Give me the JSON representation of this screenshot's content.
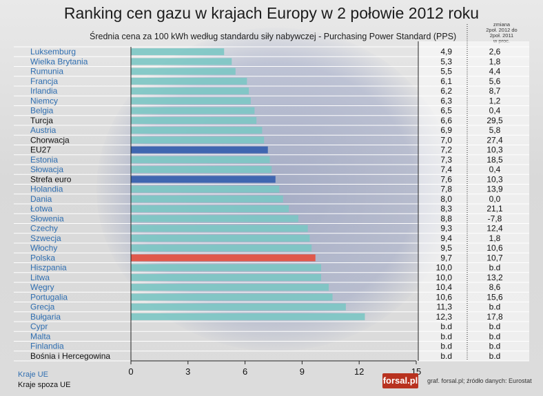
{
  "title": "Ranking cen gazu w krajach Europy w 2 połowie 2012 roku",
  "subtitle": "Średnia cena za 100 kWh według standardu siły nabywczej - Purchasing Power Standard (PPS)",
  "change_header": [
    "zmiana",
    "2poł. 2012 do",
    "2poł. 2011",
    "w proc."
  ],
  "legend": {
    "eu": "Kraje UE",
    "non_eu": "Kraje spoza UE"
  },
  "logo": "forsal.pl",
  "credit": "graf. forsal.pl;    źródło danych: Eurostat",
  "colors": {
    "eu_label": "#2f6eb0",
    "non_eu_label": "#111111",
    "bar_default": "#7cc6c4",
    "bar_aggregate": "#3f66b0",
    "bar_highlight": "#e0584b"
  },
  "chart_data": {
    "type": "bar",
    "orientation": "horizontal",
    "xlim": [
      0,
      15
    ],
    "xticks": [
      "0",
      "3",
      "6",
      "9",
      "12",
      "15"
    ],
    "grid": false,
    "rows": [
      {
        "country": "Luksemburg",
        "group": "eu",
        "value": 4.9,
        "value_label": "4,9",
        "change": "2,6",
        "bar": "default"
      },
      {
        "country": "Wielka Brytania",
        "group": "eu",
        "value": 5.3,
        "value_label": "5,3",
        "change": "1,8",
        "bar": "default"
      },
      {
        "country": "Rumunia",
        "group": "eu",
        "value": 5.5,
        "value_label": "5,5",
        "change": "4,4",
        "bar": "default"
      },
      {
        "country": "Francja",
        "group": "eu",
        "value": 6.1,
        "value_label": "6,1",
        "change": "5,6",
        "bar": "default"
      },
      {
        "country": "Irlandia",
        "group": "eu",
        "value": 6.2,
        "value_label": "6,2",
        "change": "8,7",
        "bar": "default"
      },
      {
        "country": "Niemcy",
        "group": "eu",
        "value": 6.3,
        "value_label": "6,3",
        "change": "1,2",
        "bar": "default"
      },
      {
        "country": "Belgia",
        "group": "eu",
        "value": 6.5,
        "value_label": "6,5",
        "change": "0,4",
        "bar": "default"
      },
      {
        "country": "Turcja",
        "group": "non_eu",
        "value": 6.6,
        "value_label": "6,6",
        "change": "29,5",
        "bar": "default"
      },
      {
        "country": "Austria",
        "group": "eu",
        "value": 6.9,
        "value_label": "6,9",
        "change": "5,8",
        "bar": "default"
      },
      {
        "country": "Chorwacja",
        "group": "non_eu",
        "value": 7.0,
        "value_label": "7,0",
        "change": "27,4",
        "bar": "default"
      },
      {
        "country": "EU27",
        "group": "non_eu",
        "value": 7.2,
        "value_label": "7,2",
        "change": "10,3",
        "bar": "aggregate"
      },
      {
        "country": "Estonia",
        "group": "eu",
        "value": 7.3,
        "value_label": "7,3",
        "change": "18,5",
        "bar": "default"
      },
      {
        "country": "Słowacja",
        "group": "eu",
        "value": 7.4,
        "value_label": "7,4",
        "change": "0,4",
        "bar": "default"
      },
      {
        "country": "Strefa euro",
        "group": "non_eu",
        "value": 7.6,
        "value_label": "7,6",
        "change": "10,3",
        "bar": "aggregate"
      },
      {
        "country": "Holandia",
        "group": "eu",
        "value": 7.8,
        "value_label": "7,8",
        "change": "13,9",
        "bar": "default"
      },
      {
        "country": "Dania",
        "group": "eu",
        "value": 8.0,
        "value_label": "8,0",
        "change": "0,0",
        "bar": "default"
      },
      {
        "country": "Łotwa",
        "group": "eu",
        "value": 8.3,
        "value_label": "8,3",
        "change": "21,1",
        "bar": "default"
      },
      {
        "country": "Słowenia",
        "group": "eu",
        "value": 8.8,
        "value_label": "8,8",
        "change": "-7,8",
        "bar": "default"
      },
      {
        "country": "Czechy",
        "group": "eu",
        "value": 9.3,
        "value_label": "9,3",
        "change": "12,4",
        "bar": "default"
      },
      {
        "country": "Szwecja",
        "group": "eu",
        "value": 9.4,
        "value_label": "9,4",
        "change": "1,8",
        "bar": "default"
      },
      {
        "country": "Włochy",
        "group": "eu",
        "value": 9.5,
        "value_label": "9,5",
        "change": "10,6",
        "bar": "default"
      },
      {
        "country": "Polska",
        "group": "eu",
        "value": 9.7,
        "value_label": "9,7",
        "change": "10,7",
        "bar": "highlight"
      },
      {
        "country": "Hiszpania",
        "group": "eu",
        "value": 10.0,
        "value_label": "10,0",
        "change": "b.d",
        "bar": "default"
      },
      {
        "country": "Litwa",
        "group": "eu",
        "value": 10.0,
        "value_label": "10,0",
        "change": "13,2",
        "bar": "default"
      },
      {
        "country": "Węgry",
        "group": "eu",
        "value": 10.4,
        "value_label": "10,4",
        "change": "8,6",
        "bar": "default"
      },
      {
        "country": "Portugalia",
        "group": "eu",
        "value": 10.6,
        "value_label": "10,6",
        "change": "15,6",
        "bar": "default"
      },
      {
        "country": "Grecja",
        "group": "eu",
        "value": 11.3,
        "value_label": "11,3",
        "change": "b.d",
        "bar": "default"
      },
      {
        "country": "Bułgaria",
        "group": "eu",
        "value": 12.3,
        "value_label": "12,3",
        "change": "17,8",
        "bar": "default"
      },
      {
        "country": "Cypr",
        "group": "eu",
        "value": null,
        "value_label": "b.d",
        "change": "b.d",
        "bar": "default"
      },
      {
        "country": "Malta",
        "group": "eu",
        "value": null,
        "value_label": "b.d",
        "change": "b.d",
        "bar": "default"
      },
      {
        "country": "Finlandia",
        "group": "eu",
        "value": null,
        "value_label": "b.d",
        "change": "b.d",
        "bar": "default"
      },
      {
        "country": "Bośnia i Hercegowina",
        "group": "non_eu",
        "value": null,
        "value_label": "b.d",
        "change": "b.d",
        "bar": "default"
      }
    ]
  }
}
